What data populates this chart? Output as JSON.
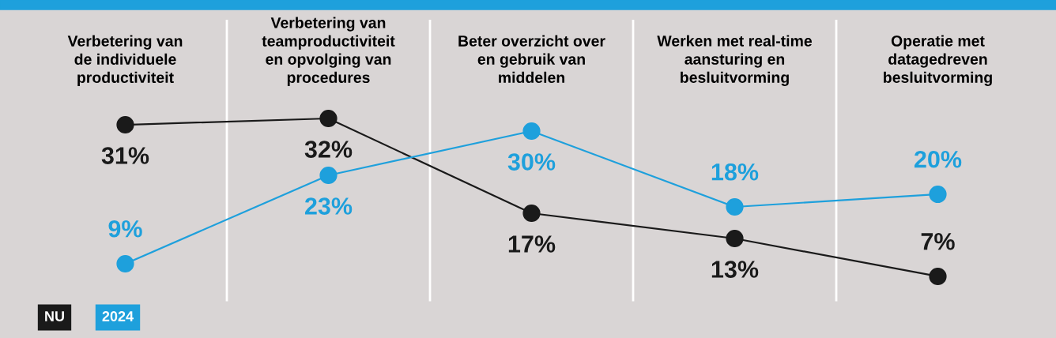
{
  "chart_data": {
    "type": "line",
    "categories": [
      "Verbetering van\nde individuele\nproductiviteit",
      "Verbetering van\nteamproductiviteit\nen opvolging van\nprocedures",
      "Beter overzicht over\nen gebruik van\nmiddelen",
      "Werken met real-time\naansturing en\nbesluitvorming",
      "Operatie met\ndatagedreven\nbesluitvorming"
    ],
    "series": [
      {
        "name": "NU",
        "color": "#1a1a1a",
        "values": [
          31,
          32,
          17,
          13,
          7
        ],
        "value_labels": [
          "31%",
          "32%",
          "17%",
          "13%",
          "7%"
        ]
      },
      {
        "name": "2024",
        "color": "#1ea0dc",
        "values": [
          9,
          23,
          30,
          18,
          20
        ],
        "value_labels": [
          "9%",
          "23%",
          "30%",
          "18%",
          "20%"
        ]
      }
    ],
    "tick_labels": "x",
    "grid": "x",
    "legend": "bottom left",
    "marker": "circle",
    "line_style": "solid"
  }
}
